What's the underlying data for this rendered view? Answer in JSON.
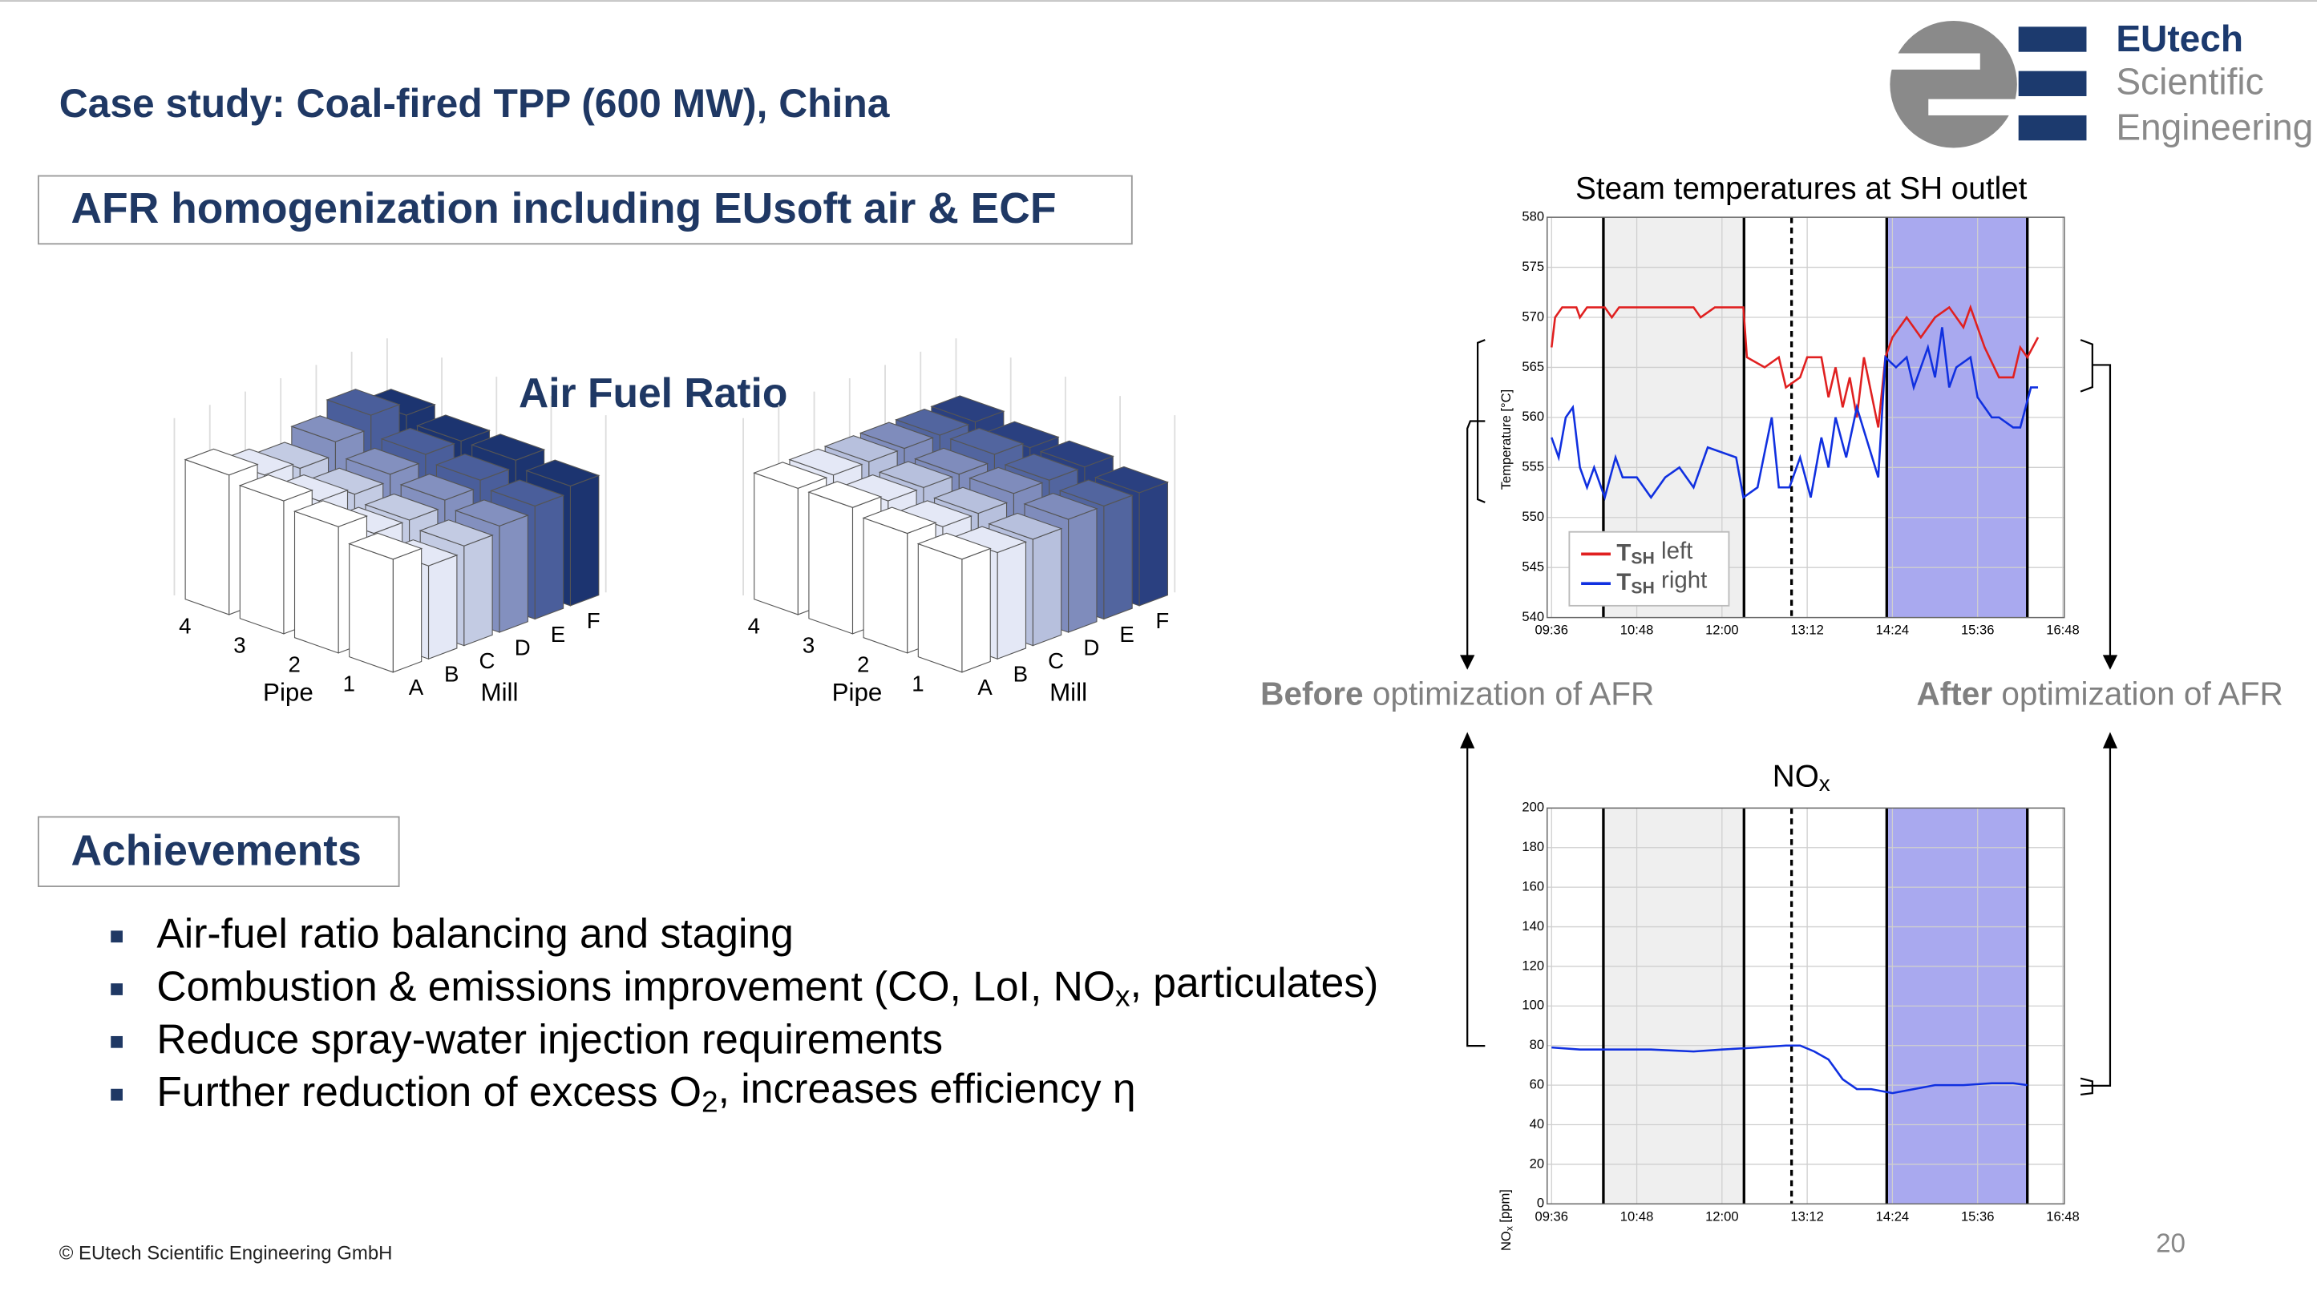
{
  "header": {
    "title": "Case study: Coal-fired TPP (600 MW), China"
  },
  "logo": {
    "lines": [
      "EUtech",
      "Scientific",
      "Engineering"
    ]
  },
  "section_1": {
    "title": "AFR homogenization including EUsoft air & ECF"
  },
  "section_2": {
    "title": "Achievements"
  },
  "achievements": [
    {
      "text": "Air-fuel ratio balancing and staging"
    },
    {
      "text": "Combustion & emissions improvement (CO, LoI, NO",
      "sub": "x",
      "tail": ", particulates)"
    },
    {
      "text": "Reduce spray-water injection requirements"
    },
    {
      "text": "Further reduction of excess O",
      "sub": "2",
      "tail": ", increases efficiency η"
    }
  ],
  "annotations": {
    "before": {
      "bold": "Before",
      "rest": " optimization of AFR"
    },
    "after": {
      "bold": "After",
      "rest": " optimization of AFR"
    }
  },
  "footer": {
    "copyright": "©  EUtech Scientific Engineering GmbH",
    "page_number": "20"
  },
  "chart_data": [
    {
      "type": "bar3d",
      "title": "Air Fuel Ratio",
      "pipe_label": "Pipe",
      "mill_label": "Mill",
      "pipes": [
        "1",
        "2",
        "3",
        "4"
      ],
      "mills": [
        "A",
        "B",
        "C",
        "D",
        "E",
        "F"
      ],
      "colors": [
        "#ffffff",
        "#e4e8f6",
        "#c3cbe3",
        "#8390bf",
        "#4a5e9b",
        "#1c3470"
      ],
      "values": [
        [
          0.85,
          0.7,
          0.75,
          0.8,
          0.85,
          0.9
        ],
        [
          0.95,
          0.8,
          0.8,
          0.85,
          0.9,
          0.95
        ],
        [
          1.0,
          0.9,
          0.85,
          0.9,
          0.95,
          0.95
        ],
        [
          1.05,
          0.95,
          0.9,
          1.0,
          1.1,
          1.0
        ]
      ]
    },
    {
      "type": "bar3d",
      "pipe_label": "Pipe",
      "mill_label": "Mill",
      "pipes": [
        "1",
        "2",
        "3",
        "4"
      ],
      "mills": [
        "A",
        "B",
        "C",
        "D",
        "E",
        "F"
      ],
      "colors": [
        "#ffffff",
        "#e4e8f6",
        "#b7c0dd",
        "#7f8cbc",
        "#52659f",
        "#2a4080"
      ],
      "values": [
        [
          0.85,
          0.8,
          0.8,
          0.85,
          0.85,
          0.85
        ],
        [
          0.9,
          0.85,
          0.85,
          0.9,
          0.9,
          0.9
        ],
        [
          0.95,
          0.9,
          0.9,
          0.9,
          0.95,
          0.9
        ],
        [
          0.95,
          0.95,
          0.95,
          0.95,
          0.95,
          0.95
        ]
      ]
    },
    {
      "type": "line",
      "title": "Steam temperatures at SH outlet",
      "y_label": {
        "main": "Temperature [°C]"
      },
      "xlim": [
        9.6,
        16.8
      ],
      "ylim": [
        540,
        580
      ],
      "grid": true,
      "legend": "lower left",
      "xticks": [
        {
          "value": 9.6,
          "label": "09:36"
        },
        {
          "value": 10.8,
          "label": "10:48"
        },
        {
          "value": 12,
          "label": "12:00"
        },
        {
          "value": 13.2,
          "label": "13:12"
        },
        {
          "value": 14.4,
          "label": "14:24"
        },
        {
          "value": 15.6,
          "label": "15:36"
        },
        {
          "value": 16.8,
          "label": "16:48"
        }
      ],
      "yticks": [
        540,
        545,
        550,
        555,
        560,
        565,
        570,
        575,
        580
      ],
      "shaded_regions": [
        {
          "from": 10.33,
          "to": 12.31,
          "color": "#efefef"
        },
        {
          "from": 14.32,
          "to": 16.3,
          "color": "#a9a9ef"
        }
      ],
      "vlines": [
        {
          "x": 10.33,
          "style": "solid"
        },
        {
          "x": 12.31,
          "style": "solid"
        },
        {
          "x": 12.98,
          "style": "dashed"
        },
        {
          "x": 14.32,
          "style": "solid"
        },
        {
          "x": 16.3,
          "style": "solid"
        }
      ],
      "series": [
        {
          "name": {
            "main": "T",
            "sub": "SH",
            "tail": " left"
          },
          "color": "#e02020",
          "x": [
            9.6,
            9.65,
            9.75,
            9.95,
            10.0,
            10.1,
            10.35,
            10.45,
            10.55,
            11.6,
            11.7,
            11.9,
            12.3,
            12.35,
            12.6,
            12.8,
            12.9,
            13.1,
            13.2,
            13.4,
            13.5,
            13.6,
            13.7,
            13.8,
            13.9,
            14.0,
            14.2,
            14.3,
            14.4,
            14.6,
            14.8,
            15.0,
            15.2,
            15.4,
            15.5,
            15.7,
            15.9,
            16.1,
            16.2,
            16.3,
            16.45
          ],
          "values": [
            567,
            570,
            571,
            571,
            570,
            571,
            571,
            570,
            571,
            571,
            570,
            571,
            571,
            566,
            565,
            566,
            563,
            564,
            566,
            566,
            562,
            565,
            561,
            564,
            560,
            566,
            559,
            566,
            568,
            570,
            568,
            570,
            571,
            569,
            571,
            567,
            564,
            564,
            567,
            566,
            568
          ]
        },
        {
          "name": {
            "main": "T",
            "sub": "SH",
            "tail": " right"
          },
          "color": "#1030e0",
          "x": [
            9.6,
            9.7,
            9.8,
            9.9,
            10.0,
            10.1,
            10.2,
            10.35,
            10.5,
            10.6,
            10.8,
            11.0,
            11.2,
            11.4,
            11.6,
            11.8,
            12.2,
            12.3,
            12.5,
            12.7,
            12.8,
            12.95,
            13.1,
            13.25,
            13.4,
            13.5,
            13.6,
            13.75,
            13.9,
            14.2,
            14.3,
            14.45,
            14.6,
            14.7,
            14.9,
            15.0,
            15.1,
            15.2,
            15.3,
            15.5,
            15.6,
            15.8,
            15.9,
            16.1,
            16.2,
            16.35,
            16.45
          ],
          "values": [
            558,
            556,
            560,
            561,
            555,
            553,
            555,
            552,
            556,
            554,
            554,
            552,
            554,
            555,
            553,
            557,
            556,
            552,
            553,
            560,
            553,
            553,
            556,
            552,
            558,
            555,
            560,
            556,
            561,
            554,
            566,
            565,
            566,
            563,
            567,
            564,
            569,
            563,
            565,
            566,
            562,
            560,
            560,
            559,
            559,
            563,
            563
          ]
        }
      ]
    },
    {
      "type": "line",
      "title": {
        "main": "NO",
        "sub": "x"
      },
      "y_label": {
        "main": "NO",
        "sub": "x",
        "tail": " [ppm]"
      },
      "xlim": [
        9.6,
        16.8
      ],
      "ylim": [
        0,
        200
      ],
      "grid": true,
      "xticks": [
        {
          "value": 9.6,
          "label": "09:36"
        },
        {
          "value": 10.8,
          "label": "10:48"
        },
        {
          "value": 12,
          "label": "12:00"
        },
        {
          "value": 13.2,
          "label": "13:12"
        },
        {
          "value": 14.4,
          "label": "14:24"
        },
        {
          "value": 15.6,
          "label": "15:36"
        },
        {
          "value": 16.8,
          "label": "16:48"
        }
      ],
      "yticks": [
        0,
        20,
        40,
        60,
        80,
        100,
        120,
        140,
        160,
        180,
        200
      ],
      "shaded_regions": [
        {
          "from": 10.33,
          "to": 12.31,
          "color": "#efefef"
        },
        {
          "from": 14.32,
          "to": 16.3,
          "color": "#a9a9ef"
        }
      ],
      "vlines": [
        {
          "x": 10.33,
          "style": "solid"
        },
        {
          "x": 12.31,
          "style": "solid"
        },
        {
          "x": 12.98,
          "style": "dashed"
        },
        {
          "x": 14.32,
          "style": "solid"
        },
        {
          "x": 16.3,
          "style": "solid"
        }
      ],
      "series": [
        {
          "color": "#1030e0",
          "x": [
            9.6,
            10.0,
            10.4,
            11.0,
            11.6,
            12.0,
            12.5,
            12.9,
            13.1,
            13.3,
            13.5,
            13.7,
            13.9,
            14.1,
            14.4,
            14.7,
            15.0,
            15.4,
            15.8,
            16.1,
            16.3
          ],
          "values": [
            79,
            78,
            78,
            78,
            77,
            78,
            79,
            80,
            80,
            77,
            73,
            63,
            58,
            58,
            56,
            58,
            60,
            60,
            61,
            61,
            60
          ]
        }
      ]
    }
  ]
}
